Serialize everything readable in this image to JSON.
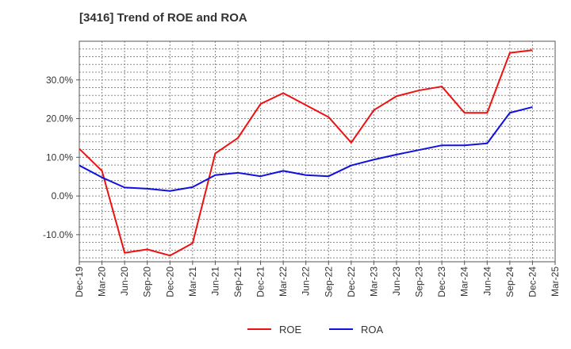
{
  "chart_data": {
    "type": "line",
    "title": "[3416]  Trend of ROE and ROA",
    "xlabel": "",
    "ylabel": "",
    "x": [
      "Dec-19",
      "Mar-20",
      "Jun-20",
      "Sep-20",
      "Dec-20",
      "Mar-21",
      "Jun-21",
      "Sep-21",
      "Dec-21",
      "Mar-22",
      "Jun-22",
      "Sep-22",
      "Dec-22",
      "Mar-23",
      "Jun-23",
      "Sep-23",
      "Dec-23",
      "Mar-24",
      "Jun-24",
      "Sep-24",
      "Dec-24",
      "Mar-25"
    ],
    "ylim": [
      -17,
      40
    ],
    "yticks": [
      -10,
      0,
      10,
      20,
      30
    ],
    "ytick_labels": [
      "-10.0%",
      "0.0%",
      "10.0%",
      "20.0%",
      "30.0%"
    ],
    "grid": true,
    "legend_position": "bottom",
    "series": [
      {
        "name": "ROE",
        "color": "#ee1111",
        "values": [
          12.2,
          6.5,
          -14.7,
          -13.8,
          -15.4,
          -12.2,
          11.0,
          15.0,
          23.8,
          26.6,
          23.5,
          20.4,
          13.8,
          22.2,
          25.8,
          27.3,
          28.3,
          21.5,
          21.5,
          37.0,
          37.7,
          null
        ]
      },
      {
        "name": "ROA",
        "color": "#1111dd",
        "values": [
          7.9,
          4.8,
          2.2,
          1.9,
          1.3,
          2.3,
          5.4,
          6.0,
          5.1,
          6.5,
          5.4,
          5.1,
          7.9,
          9.4,
          10.7,
          11.9,
          13.1,
          13.1,
          13.6,
          21.5,
          23.0,
          null
        ]
      }
    ]
  }
}
